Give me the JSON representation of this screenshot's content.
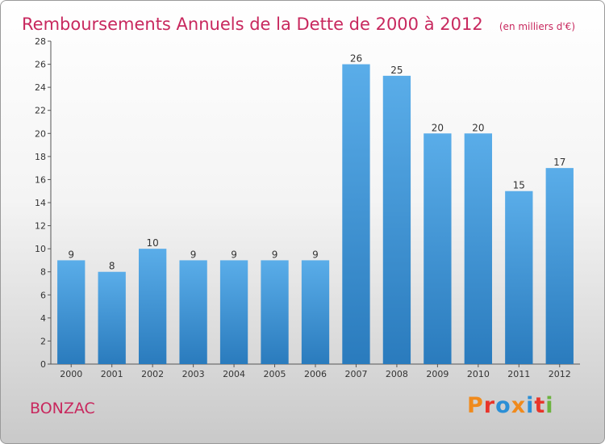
{
  "header": {
    "title": "Remboursements Annuels de la Dette de 2000 à 2012",
    "unit": "(en milliers d'€)"
  },
  "footer": {
    "commune": "BONZAC",
    "logo_text": "Proxiti",
    "logo_colors": [
      "#f08a1c",
      "#e8342a",
      "#2b8fd6",
      "#f08a1c",
      "#2b8fd6",
      "#e8342a",
      "#6cb33f"
    ]
  },
  "chart_data": {
    "type": "bar",
    "categories": [
      "2000",
      "2001",
      "2002",
      "2003",
      "2004",
      "2005",
      "2006",
      "2007",
      "2008",
      "2009",
      "2010",
      "2011",
      "2012"
    ],
    "values": [
      9,
      8,
      10,
      9,
      9,
      9,
      9,
      26,
      25,
      20,
      20,
      15,
      17
    ],
    "ylim": [
      0,
      28
    ],
    "yticks": [
      0,
      2,
      4,
      6,
      8,
      10,
      12,
      14,
      16,
      18,
      20,
      22,
      24,
      26,
      28
    ],
    "grid": false,
    "legend": "none",
    "bar_color_top": "#5aade9",
    "bar_color_bottom": "#2a7bbd"
  }
}
